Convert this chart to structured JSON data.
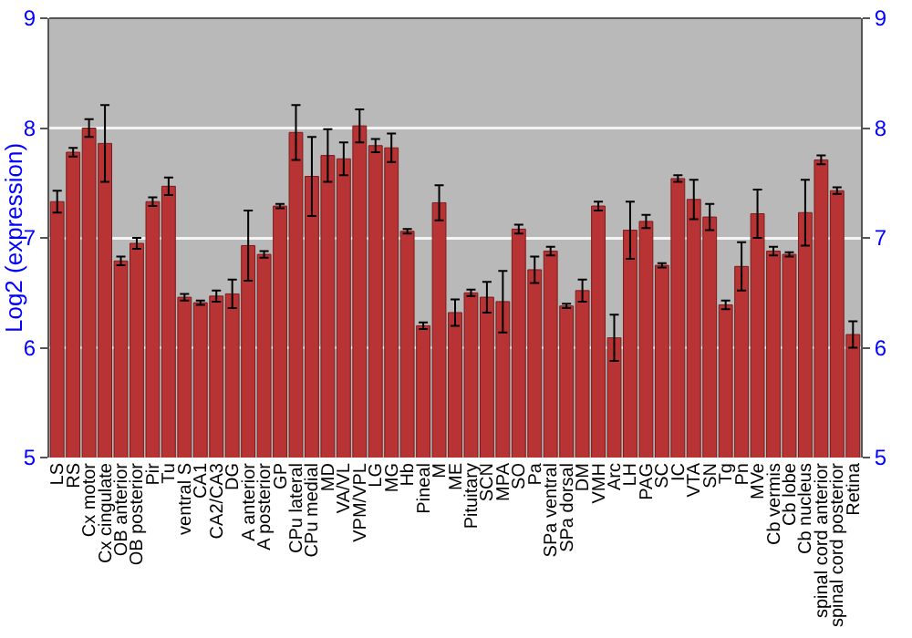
{
  "chart_data": {
    "type": "bar",
    "ylabel": "Log2 (expression)",
    "categories": [
      "LS",
      "RS",
      "Cx motor",
      "Cx cingulate",
      "OB anterior",
      "OB posterior",
      "Pir",
      "Tu",
      "ventral S",
      "CA1",
      "CA2/CA3",
      "DG",
      "A anterior",
      "A posterior",
      "GP",
      "CPu lateral",
      "CPu medial",
      "MD",
      "VA/VL",
      "VPM/VPL",
      "LG",
      "MG",
      "Hb",
      "Pineal",
      "M",
      "ME",
      "Pituitary",
      "SCN",
      "MPA",
      "SO",
      "Pa",
      "SPa ventral",
      "SPa dorsal",
      "DM",
      "VMH",
      "Arc",
      "LH",
      "PAG",
      "SC",
      "IC",
      "VTA",
      "SN",
      "Tg",
      "Pn",
      "MVe",
      "Cb vermis",
      "Cb lobe",
      "Cb nucleus",
      "spinal cord anterior",
      "spinal cord posterior",
      "Retina"
    ],
    "values": [
      7.33,
      7.78,
      8.0,
      7.86,
      6.79,
      6.95,
      7.33,
      7.47,
      6.46,
      6.41,
      6.47,
      6.49,
      6.93,
      6.85,
      7.29,
      7.96,
      7.56,
      7.75,
      7.72,
      8.02,
      7.84,
      7.82,
      7.06,
      6.2,
      7.32,
      6.32,
      6.5,
      6.46,
      6.42,
      7.08,
      6.71,
      6.88,
      6.38,
      6.52,
      7.29,
      6.09,
      7.07,
      7.15,
      6.75,
      7.54,
      7.35,
      7.19,
      6.39,
      6.74,
      7.22,
      6.88,
      6.85,
      7.23,
      7.71,
      7.43,
      6.12
    ],
    "errors": [
      0.1,
      0.04,
      0.08,
      0.35,
      0.04,
      0.05,
      0.04,
      0.08,
      0.03,
      0.02,
      0.05,
      0.13,
      0.32,
      0.03,
      0.02,
      0.25,
      0.36,
      0.24,
      0.15,
      0.15,
      0.06,
      0.13,
      0.02,
      0.03,
      0.16,
      0.12,
      0.03,
      0.14,
      0.28,
      0.04,
      0.12,
      0.04,
      0.02,
      0.1,
      0.04,
      0.21,
      0.26,
      0.06,
      0.02,
      0.03,
      0.18,
      0.12,
      0.04,
      0.22,
      0.22,
      0.04,
      0.02,
      0.3,
      0.04,
      0.03,
      0.12
    ],
    "color": "#b83434",
    "ylim": [
      5,
      9
    ],
    "yticks": [
      5,
      6,
      7,
      8,
      9
    ],
    "y2lim": [
      5,
      9
    ],
    "y2ticks": [
      5,
      6,
      7,
      8,
      9
    ],
    "grid": "y"
  }
}
